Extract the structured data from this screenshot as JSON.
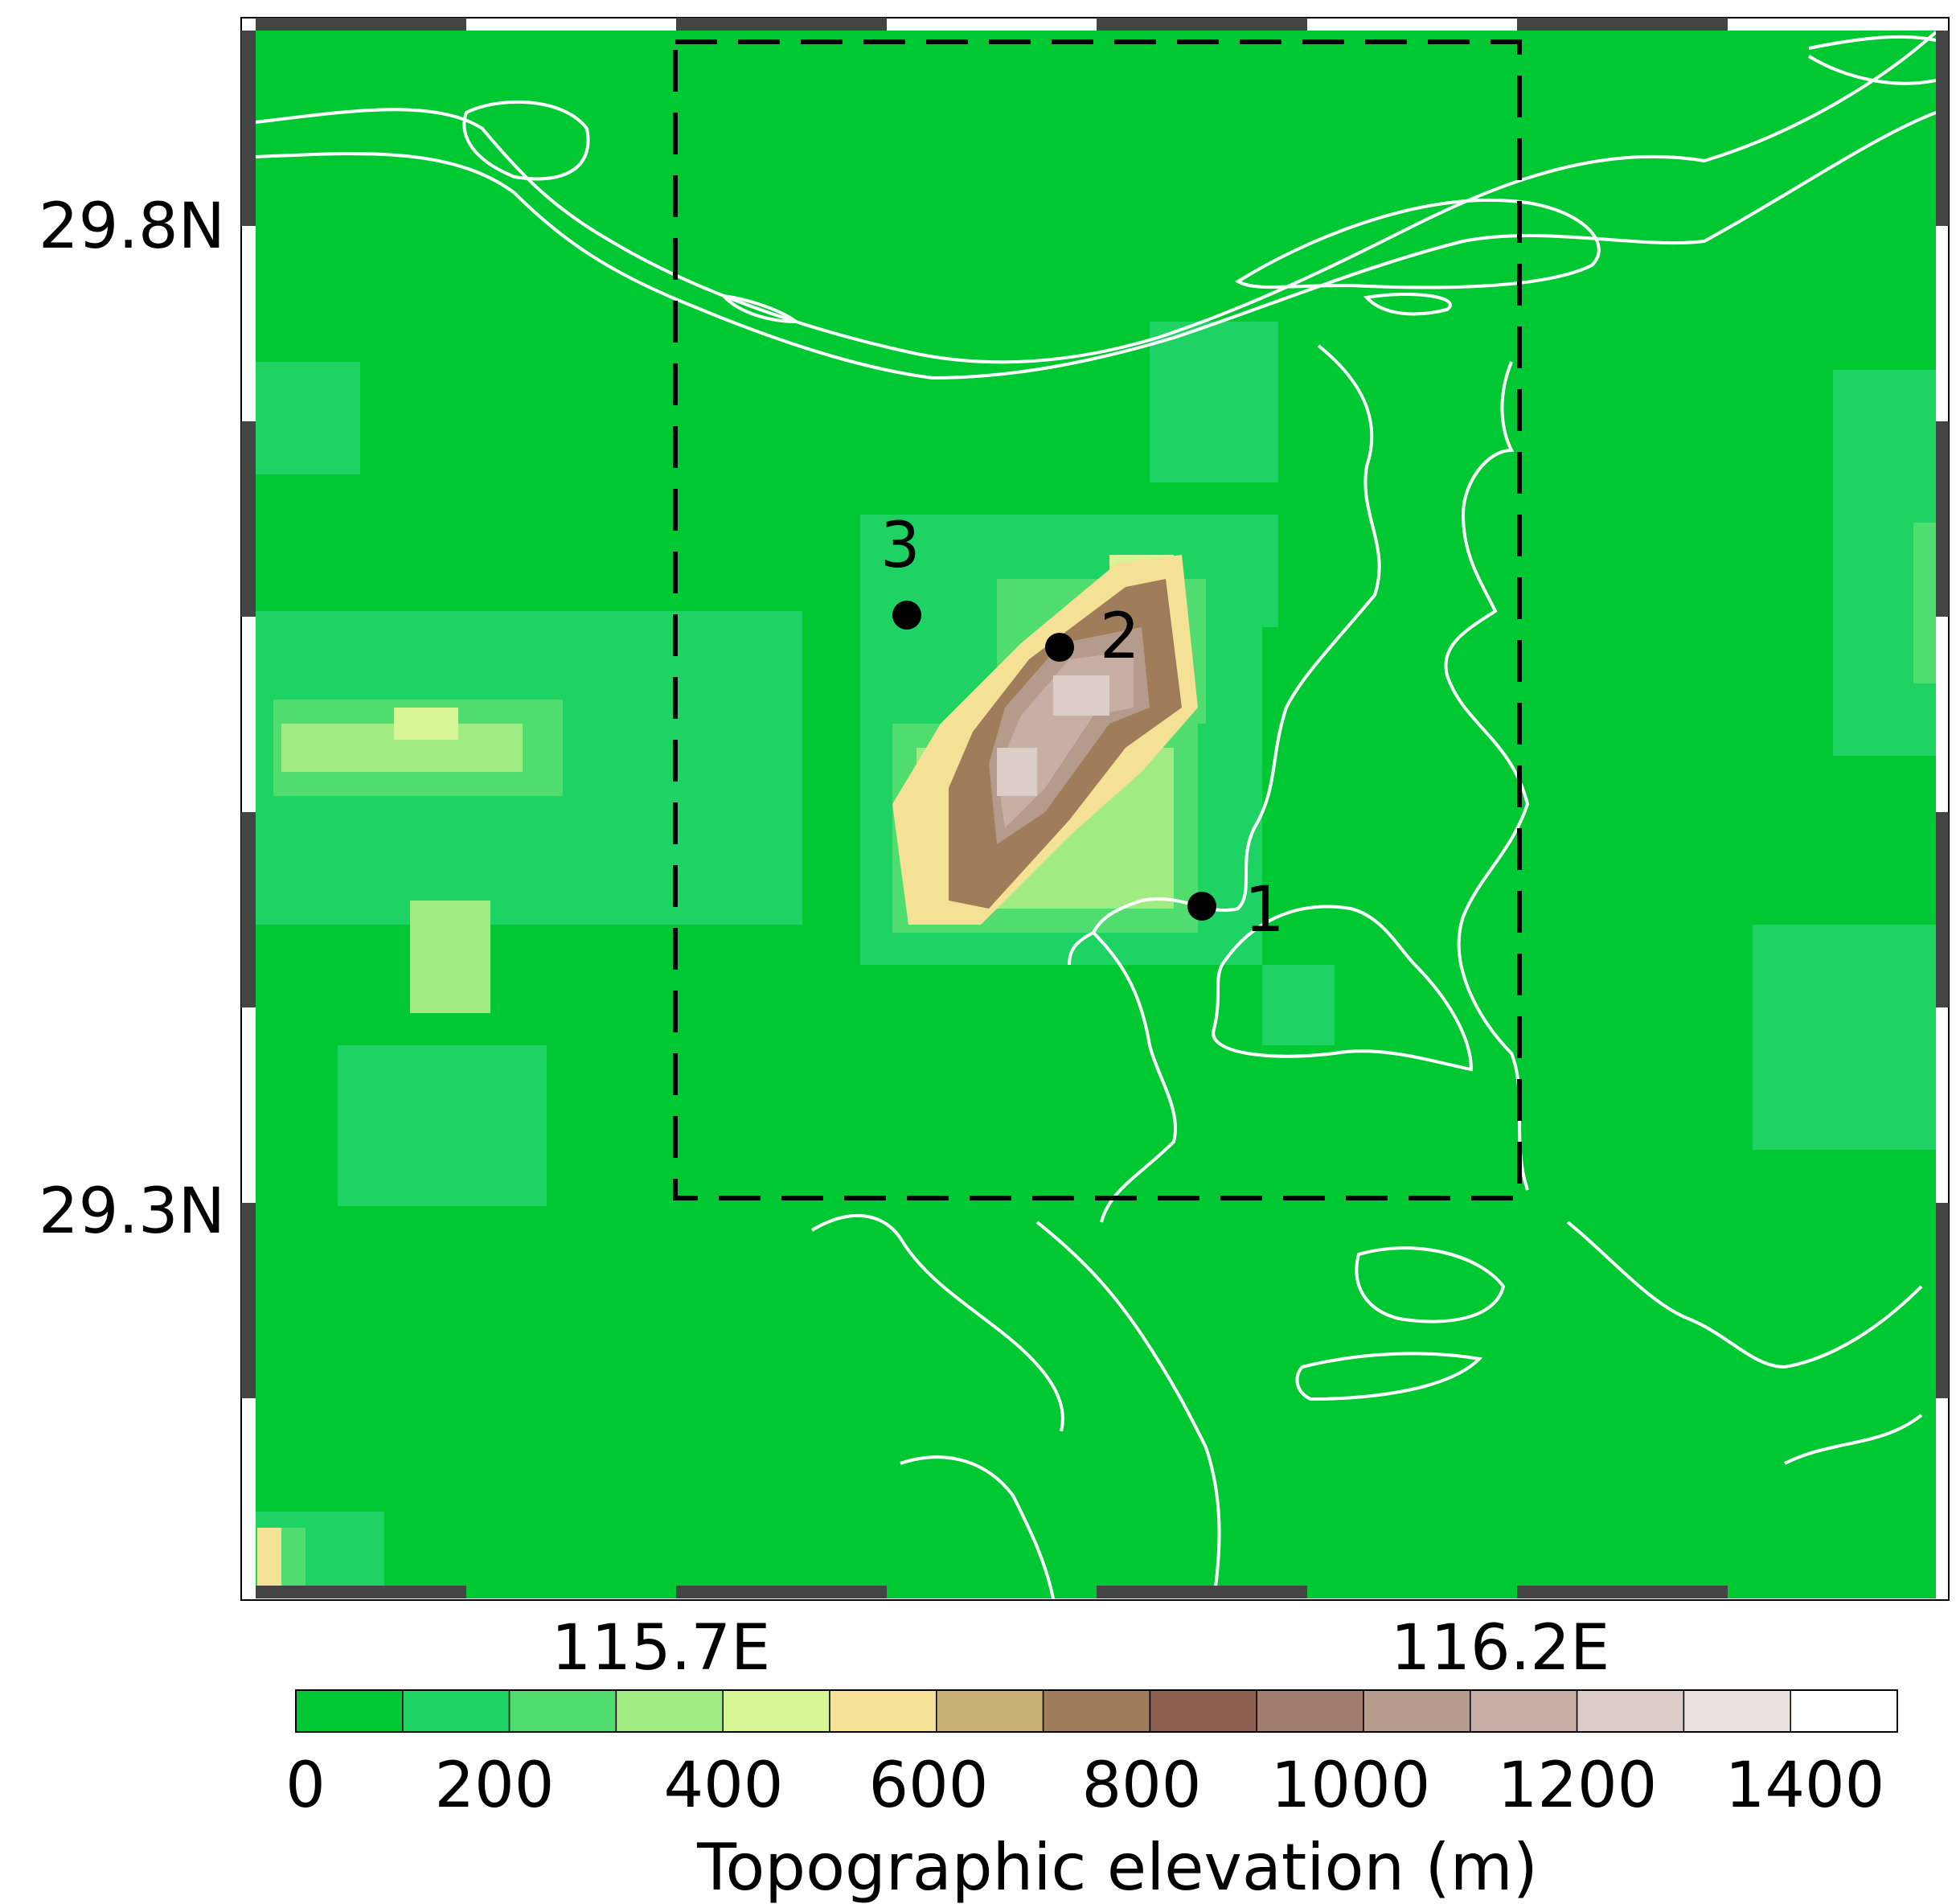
{
  "axes": {
    "lat_ticks": [
      "29.8N",
      "29.3N"
    ],
    "lon_ticks": [
      "115.7E",
      "116.2E"
    ]
  },
  "stations": [
    {
      "label": "1"
    },
    {
      "label": "2"
    },
    {
      "label": "3"
    }
  ],
  "colorbar": {
    "title": "Topographic elevation (m)",
    "tick_labels": [
      "0",
      "200",
      "400",
      "600",
      "800",
      "1000",
      "1200",
      "1400"
    ],
    "levels": [
      0,
      100,
      200,
      300,
      400,
      500,
      600,
      700,
      800,
      900,
      1000,
      1100,
      1200,
      1300,
      1400,
      1500
    ],
    "colors": [
      "#00c832",
      "#1ed264",
      "#50dc6e",
      "#a0eb82",
      "#d8f596",
      "#f5e196",
      "#c8af73",
      "#a07d5a",
      "#8c5f50",
      "#a07d6e",
      "#b49b8c",
      "#c8afa5",
      "#dccdc8",
      "#ebe1dc",
      "#ffffff"
    ]
  },
  "colors": {
    "background_land": "#00c832",
    "river": "#ffffff",
    "frame_dark": "#444444",
    "dashed_box": "#000000"
  }
}
